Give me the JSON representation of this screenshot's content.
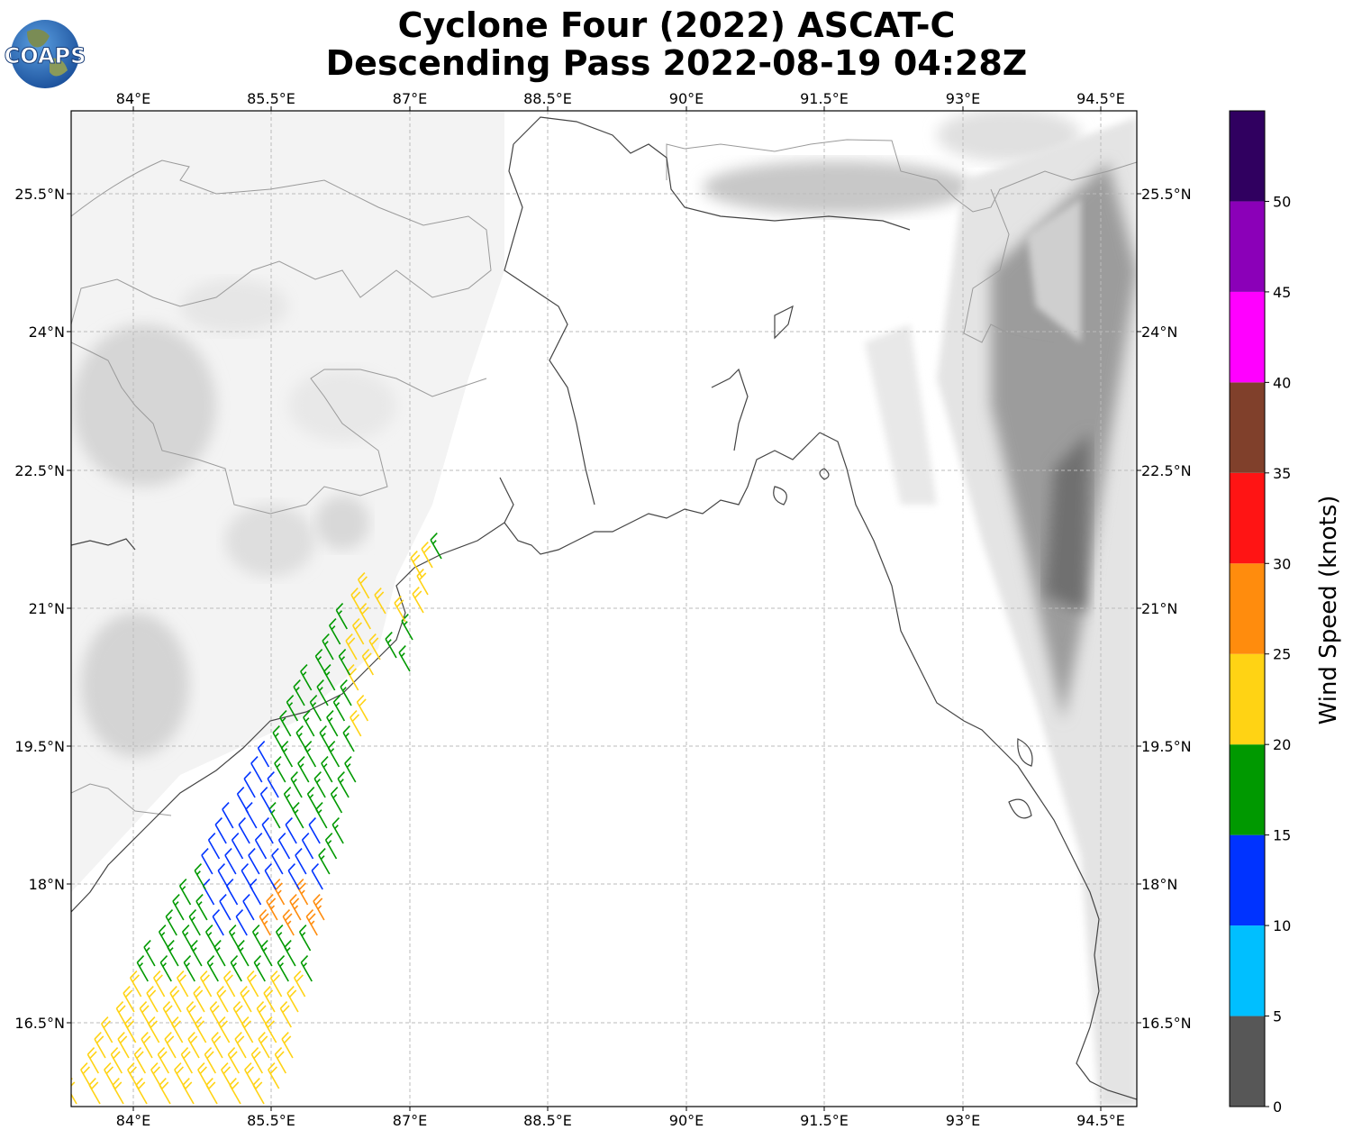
{
  "title_line1": "Cyclone Four (2022) ASCAT-C",
  "title_line2": "Descending Pass 2022-08-19 04:28Z",
  "logo_text": "COAPS",
  "lon_ticks": [
    "84°E",
    "85.5°E",
    "87°E",
    "88.5°E",
    "90°E",
    "91.5°E",
    "93°E",
    "94.5°E"
  ],
  "lat_ticks": [
    "25.5°N",
    "24°N",
    "22.5°N",
    "21°N",
    "19.5°N",
    "18°N",
    "16.5°N"
  ],
  "colorbar": {
    "label": "Wind Speed (knots)",
    "ticks": [
      "0",
      "5",
      "10",
      "15",
      "20",
      "25",
      "30",
      "35",
      "40",
      "45",
      "50"
    ],
    "bins": [
      {
        "from": 0,
        "to": 5,
        "color": "#575757"
      },
      {
        "from": 5,
        "to": 10,
        "color": "#00bfff"
      },
      {
        "from": 10,
        "to": 15,
        "color": "#0033ff"
      },
      {
        "from": 15,
        "to": 20,
        "color": "#009900"
      },
      {
        "from": 20,
        "to": 25,
        "color": "#ffd314"
      },
      {
        "from": 25,
        "to": 30,
        "color": "#ff8c0d"
      },
      {
        "from": 30,
        "to": 35,
        "color": "#ff1414"
      },
      {
        "from": 35,
        "to": 40,
        "color": "#80402b"
      },
      {
        "from": 40,
        "to": 45,
        "color": "#ff00ff"
      },
      {
        "from": 45,
        "to": 50,
        "color": "#8b00b8"
      },
      {
        "from": 50,
        "to": 55,
        "color": "#300060"
      }
    ]
  },
  "colors": {
    "coast": "#444444",
    "border": "#9a9a9a",
    "grid": "#bbbbbb"
  }
}
